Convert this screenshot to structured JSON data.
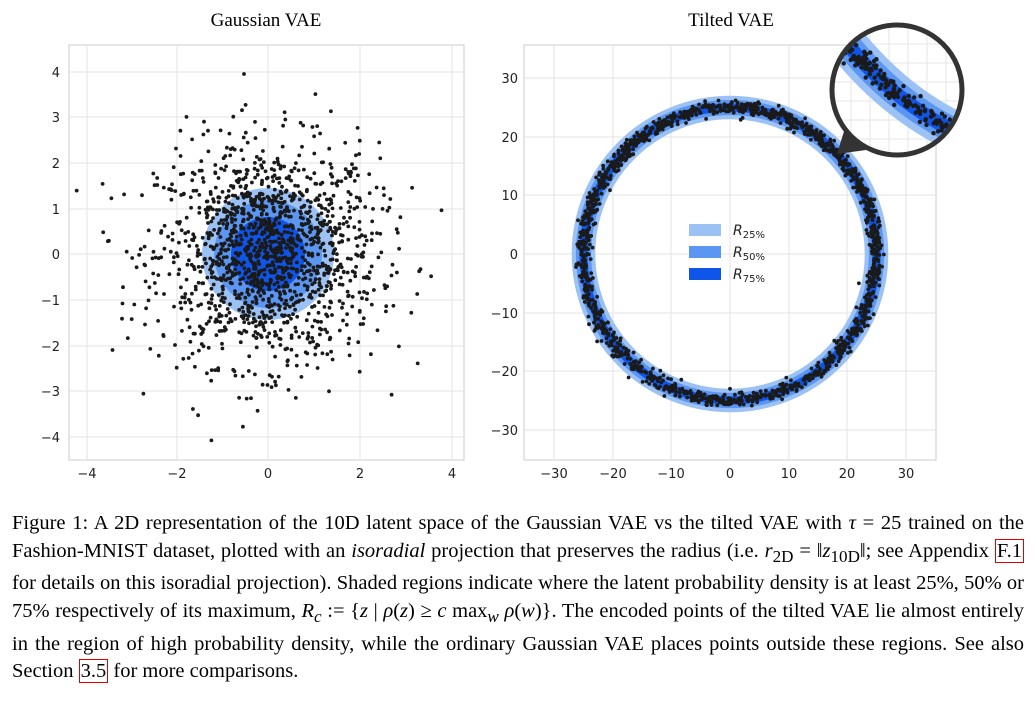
{
  "figure": {
    "panels": [
      {
        "title": "Gaussian VAE",
        "x_ticks": [
          "−4",
          "−2",
          "0",
          "2",
          "4"
        ],
        "y_ticks": [
          "4",
          "3",
          "2",
          "1",
          "0",
          "−1",
          "−2",
          "−3",
          "−4"
        ]
      },
      {
        "title": "Tilted VAE",
        "x_ticks": [
          "−30",
          "−20",
          "−10",
          "0",
          "10",
          "20",
          "30"
        ],
        "y_ticks": [
          "30",
          "20",
          "10",
          "0",
          "−10",
          "−20",
          "−30"
        ],
        "legend": [
          {
            "symbol": "R",
            "sub": "25%",
            "color": "#9cc2f5"
          },
          {
            "symbol": "R",
            "sub": "50%",
            "color": "#5b96f2"
          },
          {
            "symbol": "R",
            "sub": "75%",
            "color": "#0f55ea"
          }
        ]
      }
    ],
    "chart_data": [
      {
        "type": "scatter",
        "title": "Gaussian VAE",
        "xlim": [
          -4.2,
          4.2
        ],
        "ylim": [
          -4.3,
          4.3
        ],
        "n_points": 1500,
        "point_distribution": "isotropic gaussian, sigma ≈ 1.2, centered at (0,0)",
        "regions": [
          {
            "label": "R25%",
            "radius": 1.45,
            "color": "#9cc2f5"
          },
          {
            "label": "R50%",
            "radius": 1.2,
            "color": "#5b96f2"
          },
          {
            "label": "R75%",
            "radius": 0.83,
            "color": "#0f55ea"
          }
        ],
        "grid": true
      },
      {
        "type": "scatter",
        "title": "Tilted VAE",
        "xlim": [
          -33,
          35
        ],
        "ylim": [
          -36,
          35
        ],
        "n_points": 1500,
        "point_distribution": "ring of radius ≈ 25 centered at (0,0), radial spread ≈ 0.6",
        "regions": [
          {
            "label": "R25%",
            "inner_radius": 23.0,
            "outer_radius": 27.0,
            "color": "#9cc2f5"
          },
          {
            "label": "R50%",
            "inner_radius": 23.7,
            "outer_radius": 26.3,
            "color": "#5b96f2"
          },
          {
            "label": "R75%",
            "inner_radius": 24.3,
            "outer_radius": 25.7,
            "color": "#0f55ea"
          }
        ],
        "inset": "magnified view of the upper-right arc of the ring",
        "legend_placement": "center",
        "grid": true
      }
    ]
  },
  "caption": {
    "p1": "Figure 1:  A 2D representation of the 10D latent space of the Gaussian VAE vs the tilted VAE with ",
    "tau": "τ",
    "p2": " = 25 trained on the Fashion-MNIST dataset, plotted with an ",
    "isoradial": "isoradial",
    "p3": " projection that preserves the radius (i.e. ",
    "r2d": "r",
    "r2d_sub": "2D",
    "p4": " = ‖",
    "z10d": "z",
    "z10d_sub": "10D",
    "p5": "‖; see Appendix ",
    "ref1": "F.1",
    "p6": " for details on this isoradial projection). Shaded regions indicate where the latent probability density is at least 25%, 50% or 75% respectively of its maximum, ",
    "rc": "R",
    "rc_sub": "c",
    "p7": " := {",
    "z": "z",
    "p8": " | ",
    "rho": "ρ",
    "p9": "(",
    "z2": "z",
    "p10": ") ≥ ",
    "c": "c",
    "p11": " max",
    "w_sub": "w",
    "p12": " ",
    "rho2": "ρ",
    "p13": "(",
    "w": "w",
    "p14": ")}.  The encoded points of the tilted VAE lie almost entirely in the region of high probability density, while the ordinary Gaussian VAE places points outside these regions. See also Section ",
    "ref2": "3.5",
    "p15": " for more comparisons."
  }
}
